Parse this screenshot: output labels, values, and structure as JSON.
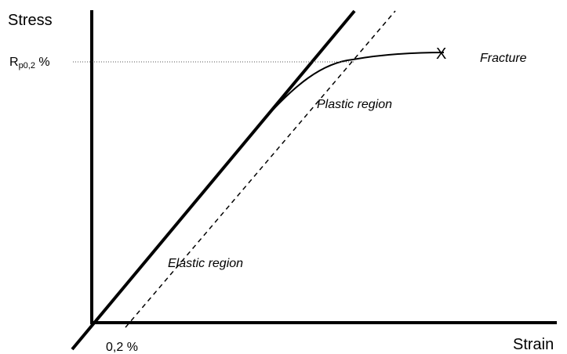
{
  "diagram": {
    "y_axis_label": "Stress",
    "x_axis_label": "Strain",
    "proof_stress_label": {
      "main": "R",
      "subscript": "p0,2",
      "suffix": " %"
    },
    "offset_label": "0,2 %",
    "elastic_region_label": "Elastic region",
    "plastic_region_label": "Plastic region",
    "fracture_label": "Fracture",
    "fracture_marker": "X",
    "colors": {
      "line": "#000000",
      "background": "#ffffff",
      "guide": "#555555"
    }
  }
}
